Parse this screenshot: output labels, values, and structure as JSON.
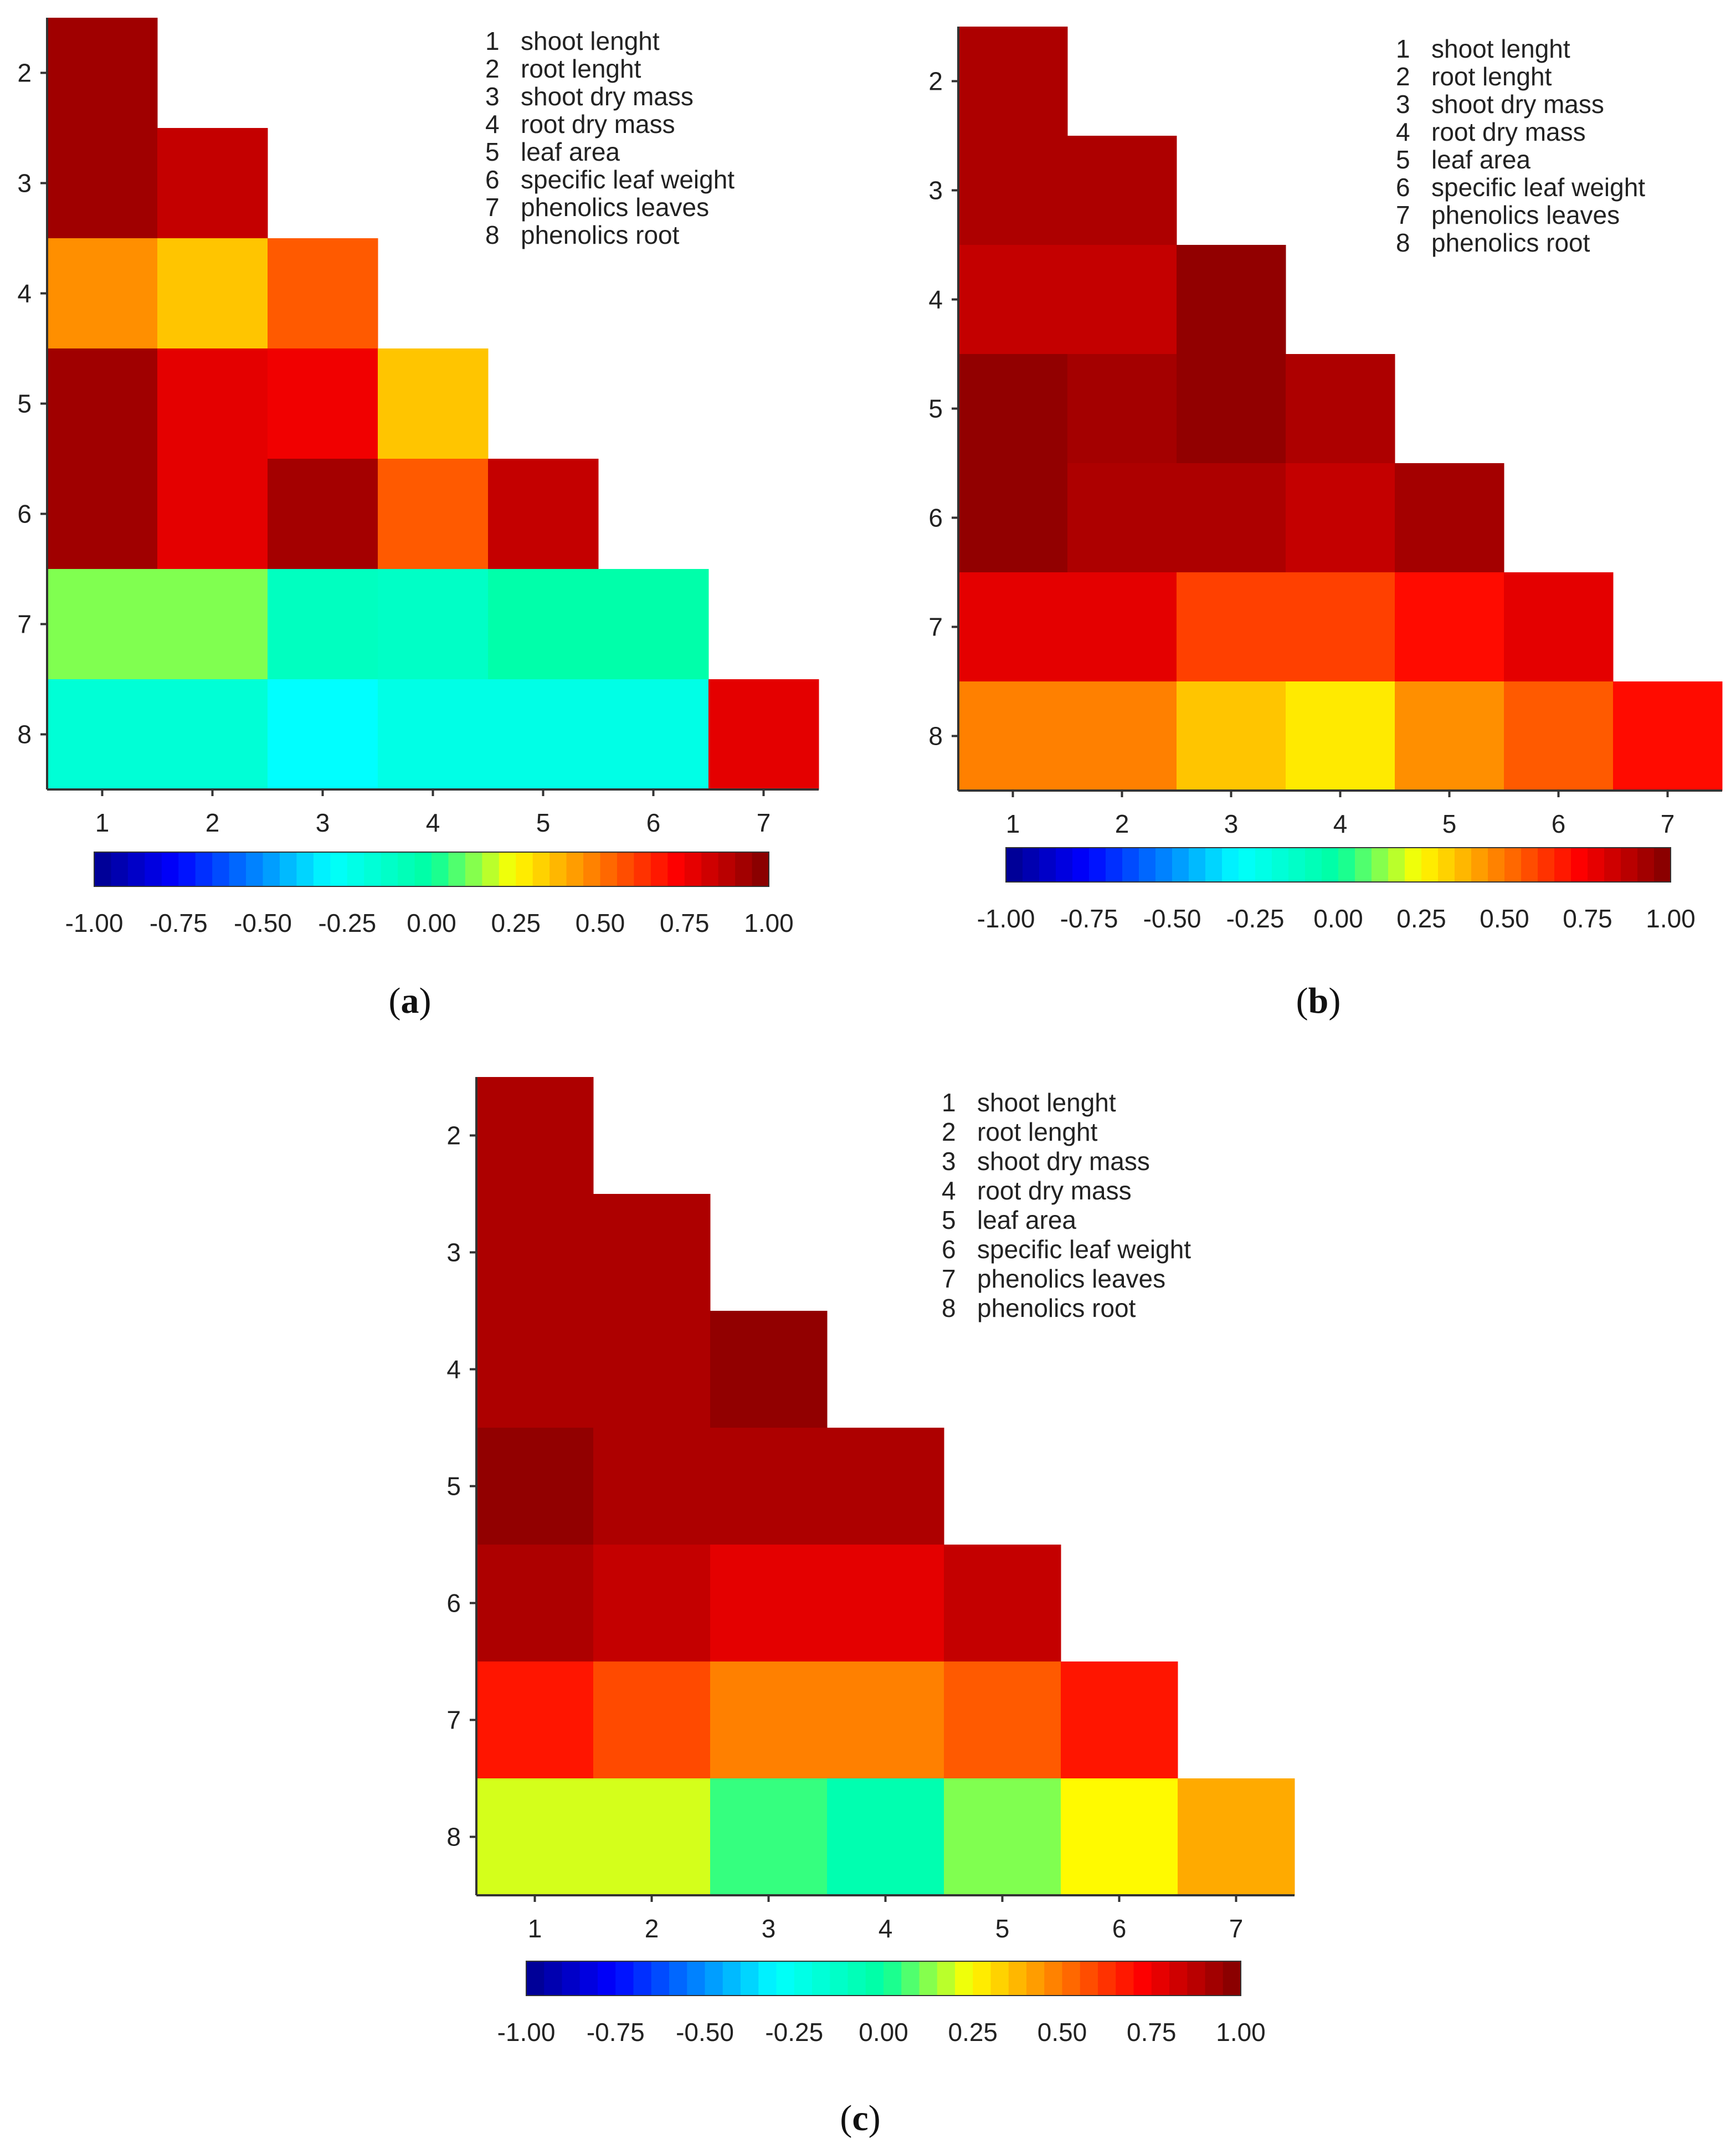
{
  "figure": {
    "variables": [
      {
        "index": "1",
        "name": "shoot lenght"
      },
      {
        "index": "2",
        "name": "root lenght"
      },
      {
        "index": "3",
        "name": "shoot dry mass"
      },
      {
        "index": "4",
        "name": "root dry mass"
      },
      {
        "index": "5",
        "name": "leaf area"
      },
      {
        "index": "6",
        "name": "specific leaf weight"
      },
      {
        "index": "7",
        "name": "phenolics leaves"
      },
      {
        "index": "8",
        "name": "phenolics root"
      }
    ],
    "colorbar_ticks": [
      "-1.00",
      "-0.75",
      "-0.50",
      "-0.25",
      "0.00",
      "0.25",
      "0.50",
      "0.75",
      "1.00"
    ]
  },
  "chart_data": [
    {
      "type": "heatmap",
      "panel_label": "a",
      "x_tick_labels": [
        "1",
        "2",
        "3",
        "4",
        "5",
        "6",
        "7"
      ],
      "y_tick_labels": [
        "2",
        "3",
        "4",
        "5",
        "6",
        "7",
        "8"
      ],
      "color_range": [
        -1,
        1
      ],
      "matrix": [
        [
          0.93
        ],
        [
          0.93,
          0.85
        ],
        [
          0.45,
          0.35,
          0.55
        ],
        [
          0.93,
          0.78,
          0.75,
          0.35
        ],
        [
          0.93,
          0.78,
          0.92,
          0.55,
          0.85
        ],
        [
          0.12,
          0.12,
          -0.1,
          -0.12,
          -0.03,
          -0.03
        ],
        [
          -0.17,
          -0.17,
          -0.3,
          -0.22,
          -0.22,
          -0.22,
          0.78
        ]
      ]
    },
    {
      "type": "heatmap",
      "panel_label": "b",
      "x_tick_labels": [
        "1",
        "2",
        "3",
        "4",
        "5",
        "6",
        "7"
      ],
      "y_tick_labels": [
        "2",
        "3",
        "4",
        "5",
        "6",
        "7",
        "8"
      ],
      "color_range": [
        -1,
        1
      ],
      "matrix": [
        [
          0.9
        ],
        [
          0.9,
          0.9
        ],
        [
          0.85,
          0.85,
          0.96
        ],
        [
          0.96,
          0.92,
          0.96,
          0.9
        ],
        [
          0.96,
          0.9,
          0.9,
          0.85,
          0.92
        ],
        [
          0.78,
          0.78,
          0.6,
          0.6,
          0.7,
          0.78
        ],
        [
          0.48,
          0.48,
          0.35,
          0.28,
          0.45,
          0.55,
          0.7
        ]
      ]
    },
    {
      "type": "heatmap",
      "panel_label": "c",
      "x_tick_labels": [
        "1",
        "2",
        "3",
        "4",
        "5",
        "6",
        "7"
      ],
      "y_tick_labels": [
        "2",
        "3",
        "4",
        "5",
        "6",
        "7",
        "8"
      ],
      "color_range": [
        -1,
        1
      ],
      "matrix": [
        [
          0.9
        ],
        [
          0.9,
          0.9
        ],
        [
          0.9,
          0.9,
          0.96
        ],
        [
          0.96,
          0.9,
          0.9,
          0.9
        ],
        [
          0.9,
          0.85,
          0.78,
          0.78,
          0.85
        ],
        [
          0.68,
          0.58,
          0.48,
          0.48,
          0.55,
          0.68
        ],
        [
          0.2,
          0.2,
          0.05,
          -0.05,
          0.12,
          0.25,
          0.4
        ]
      ]
    }
  ]
}
